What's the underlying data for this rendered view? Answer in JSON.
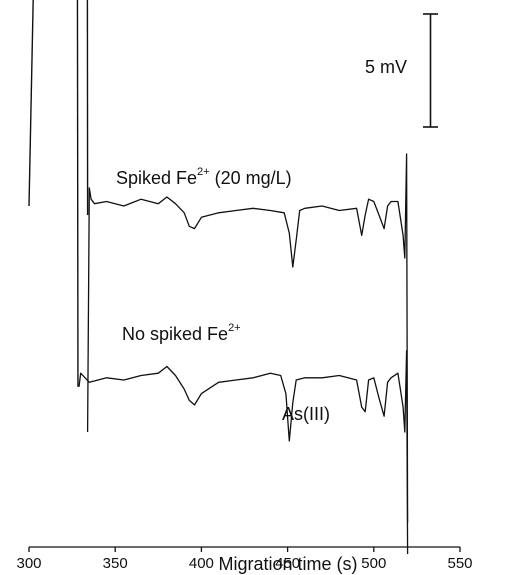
{
  "chart_data": {
    "type": "line",
    "title": "",
    "xlabel": "Migration time (s)",
    "ylabel": "",
    "xlim": [
      300,
      550
    ],
    "xticks": [
      "300",
      "350",
      "400",
      "450",
      "500",
      "550"
    ],
    "grid": false,
    "scale_bar": {
      "label": "5 mV",
      "mV": 5
    },
    "annotations": {
      "spiked_prefix": "Spiked Fe",
      "spiked_sup": "2+",
      "spiked_suffix": " (20 mg/L)",
      "nospiked_prefix": "No spiked Fe",
      "nospiked_sup": "2+",
      "peak_label": "As(III)"
    },
    "series": [
      {
        "name": "Spiked Fe2+ (20 mg/L)",
        "baseline_mV": 0,
        "x": [
          334,
          335,
          336,
          338,
          345,
          355,
          365,
          375,
          380,
          385,
          390,
          393,
          396,
          400,
          410,
          420,
          430,
          440,
          448,
          451,
          453,
          455,
          457,
          460,
          470,
          480,
          490,
          493,
          495,
          497,
          500,
          503,
          506,
          508,
          510,
          514,
          517,
          518,
          519,
          519.6
        ],
        "y": [
          -10,
          0.8,
          0.3,
          0.1,
          0.2,
          0,
          0.3,
          0.1,
          0.4,
          0.1,
          -0.3,
          -0.9,
          -1.0,
          -0.5,
          -0.3,
          -0.2,
          -0.1,
          -0.2,
          -0.3,
          -1.2,
          -2.7,
          -1.5,
          -0.2,
          -0.1,
          0,
          -0.2,
          -0.1,
          -1.3,
          -0.4,
          0.3,
          0.2,
          -0.4,
          -1.0,
          0.0,
          0.2,
          0.2,
          -1.3,
          -2.3,
          2.3,
          -14
        ]
      },
      {
        "name": "No spiked Fe2+",
        "baseline_mV": -8,
        "x": [
          329,
          330,
          335,
          340,
          345,
          355,
          365,
          375,
          380,
          385,
          390,
          393,
          396,
          400,
          410,
          420,
          430,
          440,
          446,
          449,
          451,
          453,
          455,
          460,
          470,
          480,
          490,
          493,
          495,
          497,
          500,
          503,
          506,
          508,
          510,
          514,
          517,
          518,
          519,
          519.6
        ],
        "y": [
          0,
          0.6,
          0.2,
          0.3,
          0.4,
          0.3,
          0.5,
          0.6,
          0.9,
          0.5,
          -0.1,
          -0.6,
          -0.8,
          -0.3,
          0.2,
          0.3,
          0.4,
          0.6,
          0.5,
          -0.3,
          -2.4,
          -0.7,
          0.3,
          0.4,
          0.4,
          0.5,
          0.3,
          -0.9,
          -1.1,
          0.3,
          0.4,
          -0.5,
          -1.3,
          0.2,
          0.4,
          0.6,
          -0.9,
          -2.0,
          1.6,
          -7.4
        ]
      }
    ]
  }
}
